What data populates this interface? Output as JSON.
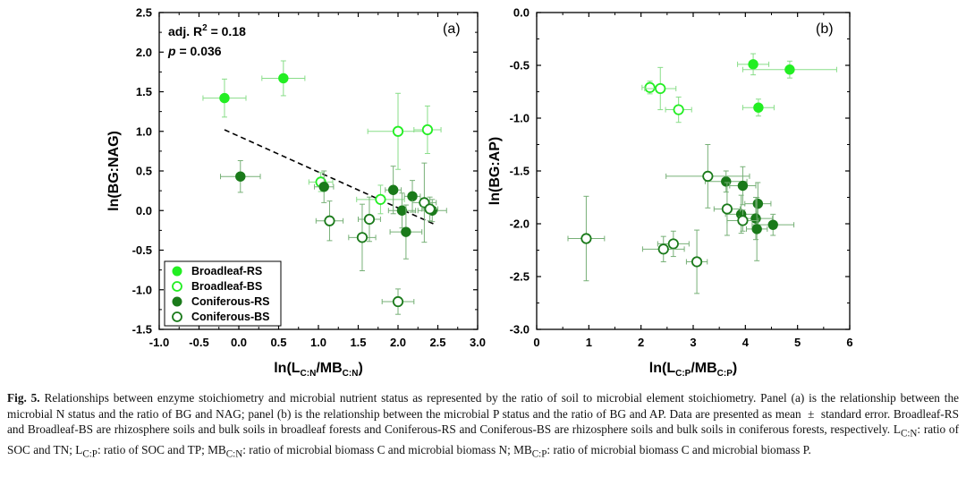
{
  "colors": {
    "broadleaf": "#22ee22",
    "coniferous": "#1a7a1a",
    "errorbar_broadleaf": "#88dd88",
    "errorbar_coniferous": "#77b077",
    "trend": "#000000"
  },
  "legend": {
    "entries": [
      {
        "label": "Broadleaf-RS",
        "color": "#22ee22",
        "filled": true
      },
      {
        "label": "Broadleaf-BS",
        "color": "#22ee22",
        "filled": false
      },
      {
        "label": "Coniferous-RS",
        "color": "#1a7a1a",
        "filled": true
      },
      {
        "label": "Coniferous-BS",
        "color": "#1a7a1a",
        "filled": false
      }
    ]
  },
  "chart_data": [
    {
      "type": "scatter",
      "panel": "(a)",
      "xlabel_main": "ln(L",
      "xlabel_sub1": "C:N",
      "xlabel_mid": "/MB",
      "xlabel_sub2": "C:N",
      "xlabel_end": ")",
      "ylabel": "ln(BG:NAG)",
      "xlim": [
        -1.0,
        3.0
      ],
      "ylim": [
        -1.5,
        2.5
      ],
      "xticks": [
        "-1.0",
        "-0.5",
        "0.0",
        "0.5",
        "1.0",
        "1.5",
        "2.0",
        "2.5",
        "3.0"
      ],
      "yticks": [
        "-1.5",
        "-1.0",
        "-0.5",
        "0.0",
        "0.5",
        "1.0",
        "1.5",
        "2.0",
        "2.5"
      ],
      "annotation_r2_prefix": "adj. R",
      "annotation_r2_sup": "2",
      "annotation_r2_value": " = 0.18",
      "annotation_p_symbol": "p",
      "annotation_p_value": " = 0.036",
      "trendline": {
        "x": [
          -0.18,
          2.45
        ],
        "y": [
          1.02,
          -0.17
        ],
        "style": "dashed"
      },
      "series": [
        {
          "name": "Broadleaf-RS",
          "points": [
            {
              "x": -0.18,
              "y": 1.42,
              "xerr": 0.27,
              "yerr": 0.24
            },
            {
              "x": 0.56,
              "y": 1.67,
              "xerr": 0.27,
              "yerr": 0.22
            }
          ]
        },
        {
          "name": "Broadleaf-BS",
          "points": [
            {
              "x": 2.0,
              "y": 1.0,
              "xerr": 0.38,
              "yerr": 0.48
            },
            {
              "x": 2.37,
              "y": 1.02,
              "xerr": 0.17,
              "yerr": 0.3
            },
            {
              "x": 1.03,
              "y": 0.36,
              "xerr": 0.15,
              "yerr": 0.12
            },
            {
              "x": 1.78,
              "y": 0.14,
              "xerr": 0.3,
              "yerr": 0.18
            }
          ]
        },
        {
          "name": "Coniferous-RS",
          "points": [
            {
              "x": 0.02,
              "y": 0.43,
              "xerr": 0.25,
              "yerr": 0.2
            },
            {
              "x": 1.07,
              "y": 0.3,
              "xerr": 0.12,
              "yerr": 0.2
            },
            {
              "x": 1.94,
              "y": 0.26,
              "xerr": 0.1,
              "yerr": 0.3
            },
            {
              "x": 2.18,
              "y": 0.18,
              "xerr": 0.1,
              "yerr": 0.2
            },
            {
              "x": 2.05,
              "y": 0.0,
              "xerr": 0.17,
              "yerr": 0.22
            },
            {
              "x": 2.43,
              "y": 0.0,
              "xerr": 0.18,
              "yerr": 0.14
            },
            {
              "x": 2.1,
              "y": -0.27,
              "xerr": 0.2,
              "yerr": 0.34
            }
          ]
        },
        {
          "name": "Coniferous-BS",
          "points": [
            {
              "x": 1.14,
              "y": -0.13,
              "xerr": 0.17,
              "yerr": 0.25
            },
            {
              "x": 1.64,
              "y": -0.11,
              "xerr": 0.14,
              "yerr": 0.28
            },
            {
              "x": 1.55,
              "y": -0.34,
              "xerr": 0.17,
              "yerr": 0.42
            },
            {
              "x": 2.33,
              "y": 0.1,
              "xerr": 0.15,
              "yerr": 0.5
            },
            {
              "x": 2.4,
              "y": 0.02,
              "xerr": 0.1,
              "yerr": 0.15
            },
            {
              "x": 2.0,
              "y": -1.15,
              "xerr": 0.2,
              "yerr": 0.16
            }
          ]
        }
      ]
    },
    {
      "type": "scatter",
      "panel": "(b)",
      "xlabel_main": "ln(L",
      "xlabel_sub1": "C:P",
      "xlabel_mid": "/MB",
      "xlabel_sub2": "C:P",
      "xlabel_end": ")",
      "ylabel": "ln(BG:AP)",
      "xlim": [
        0,
        6
      ],
      "ylim": [
        -3.0,
        0.0
      ],
      "xticks": [
        "0",
        "1",
        "2",
        "3",
        "4",
        "5",
        "6"
      ],
      "yticks": [
        "-3.0",
        "-2.5",
        "-2.0",
        "-1.5",
        "-1.0",
        "-0.5",
        "0.0"
      ],
      "series": [
        {
          "name": "Broadleaf-RS",
          "points": [
            {
              "x": 4.15,
              "y": -0.49,
              "xerr": 0.3,
              "yerr": 0.1
            },
            {
              "x": 4.85,
              "y": -0.54,
              "xerr": 0.9,
              "yerr": 0.08
            },
            {
              "x": 4.25,
              "y": -0.9,
              "xerr": 0.3,
              "yerr": 0.08
            }
          ]
        },
        {
          "name": "Broadleaf-BS",
          "points": [
            {
              "x": 2.17,
              "y": -0.71,
              "xerr": 0.15,
              "yerr": 0.06
            },
            {
              "x": 2.37,
              "y": -0.72,
              "xerr": 0.3,
              "yerr": 0.2
            },
            {
              "x": 2.72,
              "y": -0.92,
              "xerr": 0.25,
              "yerr": 0.12
            }
          ]
        },
        {
          "name": "Coniferous-RS",
          "points": [
            {
              "x": 3.63,
              "y": -1.6,
              "xerr": 0.4,
              "yerr": 0.1
            },
            {
              "x": 3.95,
              "y": -1.64,
              "xerr": 0.25,
              "yerr": 0.18
            },
            {
              "x": 4.24,
              "y": -1.81,
              "xerr": 0.25,
              "yerr": 0.2
            },
            {
              "x": 3.92,
              "y": -1.91,
              "xerr": 0.3,
              "yerr": 0.18
            },
            {
              "x": 4.2,
              "y": -1.95,
              "xerr": 0.32,
              "yerr": 0.2
            },
            {
              "x": 4.53,
              "y": -2.01,
              "xerr": 0.4,
              "yerr": 0.1
            },
            {
              "x": 4.22,
              "y": -2.05,
              "xerr": 0.2,
              "yerr": 0.3
            }
          ]
        },
        {
          "name": "Coniferous-BS",
          "points": [
            {
              "x": 3.28,
              "y": -1.55,
              "xerr": 0.8,
              "yerr": 0.3
            },
            {
              "x": 3.65,
              "y": -1.86,
              "xerr": 0.25,
              "yerr": 0.25
            },
            {
              "x": 3.95,
              "y": -1.97,
              "xerr": 0.3,
              "yerr": 0.1
            },
            {
              "x": 0.95,
              "y": -2.14,
              "xerr": 0.35,
              "yerr": 0.4
            },
            {
              "x": 2.62,
              "y": -2.19,
              "xerr": 0.3,
              "yerr": 0.12
            },
            {
              "x": 2.43,
              "y": -2.24,
              "xerr": 0.4,
              "yerr": 0.12
            },
            {
              "x": 3.07,
              "y": -2.36,
              "xerr": 0.2,
              "yerr": 0.3
            }
          ]
        }
      ]
    }
  ],
  "caption": {
    "fig_label": "Fig. 5.",
    "part1": " Relationships between enzyme stoichiometry and microbial nutrient status as represented by the ratio of soil to microbial element stoichiometry. Panel (a) is the relationship between the microbial N status and the ratio of BG and NAG; panel (b) is the relationship between the microbial P status and the ratio of BG and AP. Data are presented as mean  ±  standard error. Broadleaf-RS and Broadleaf-BS are rhizosphere soils and bulk soils in broadleaf forests and Coniferous-RS and Coniferous-BS are rhizosphere soils and bulk soils in coniferous forests, respectively. L",
    "sub_cn": "C:N",
    "part2": ": ratio of SOC and TN; L",
    "sub_cp": "C:P",
    "part3": ": ratio of SOC and TP; MB",
    "sub_cn2": "C:N",
    "part4": ": ratio of microbial biomass C and microbial biomass N; MB",
    "sub_cp2": "C:P",
    "part5": ": ratio of microbial biomass C and microbial biomass P."
  }
}
